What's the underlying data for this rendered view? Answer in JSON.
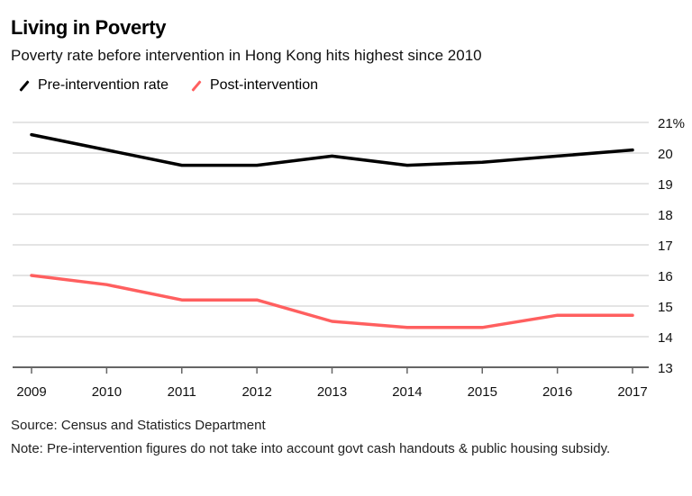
{
  "header": {
    "title": "Living in Poverty",
    "subtitle": "Poverty rate before intervention in Hong Kong hits highest since 2010"
  },
  "legend": [
    {
      "label": "Pre-intervention rate",
      "color": "#000000"
    },
    {
      "label": "Post-intervention",
      "color": "#ff5f5f"
    }
  ],
  "footer": {
    "source": "Source: Census and Statistics Department",
    "note": "Note: Pre-intervention figures do not take into account govt cash handouts & public housing subsidy."
  },
  "chart_data": {
    "type": "line",
    "title": "Living in Poverty",
    "subtitle": "Poverty rate before intervention in Hong Kong hits highest since 2010",
    "xlabel": "",
    "ylabel": "",
    "x": [
      "2009",
      "2010",
      "2011",
      "2012",
      "2013",
      "2014",
      "2015",
      "2016",
      "2017"
    ],
    "series": [
      {
        "name": "Pre-intervention rate",
        "color": "#000000",
        "values": [
          20.6,
          20.1,
          19.6,
          19.6,
          19.9,
          19.6,
          19.7,
          19.9,
          20.1
        ]
      },
      {
        "name": "Post-intervention",
        "color": "#ff5f5f",
        "values": [
          16.0,
          15.7,
          15.2,
          15.2,
          14.5,
          14.3,
          14.3,
          14.7,
          14.7
        ]
      }
    ],
    "ylim": [
      13,
      21
    ],
    "yticks": [
      13,
      14,
      15,
      16,
      17,
      18,
      19,
      20,
      21
    ],
    "ytick_labels": [
      "13",
      "14",
      "15",
      "16",
      "17",
      "18",
      "19",
      "20",
      "21%"
    ],
    "y_axis_side": "right",
    "grid": true,
    "legend_position": "top-left"
  }
}
